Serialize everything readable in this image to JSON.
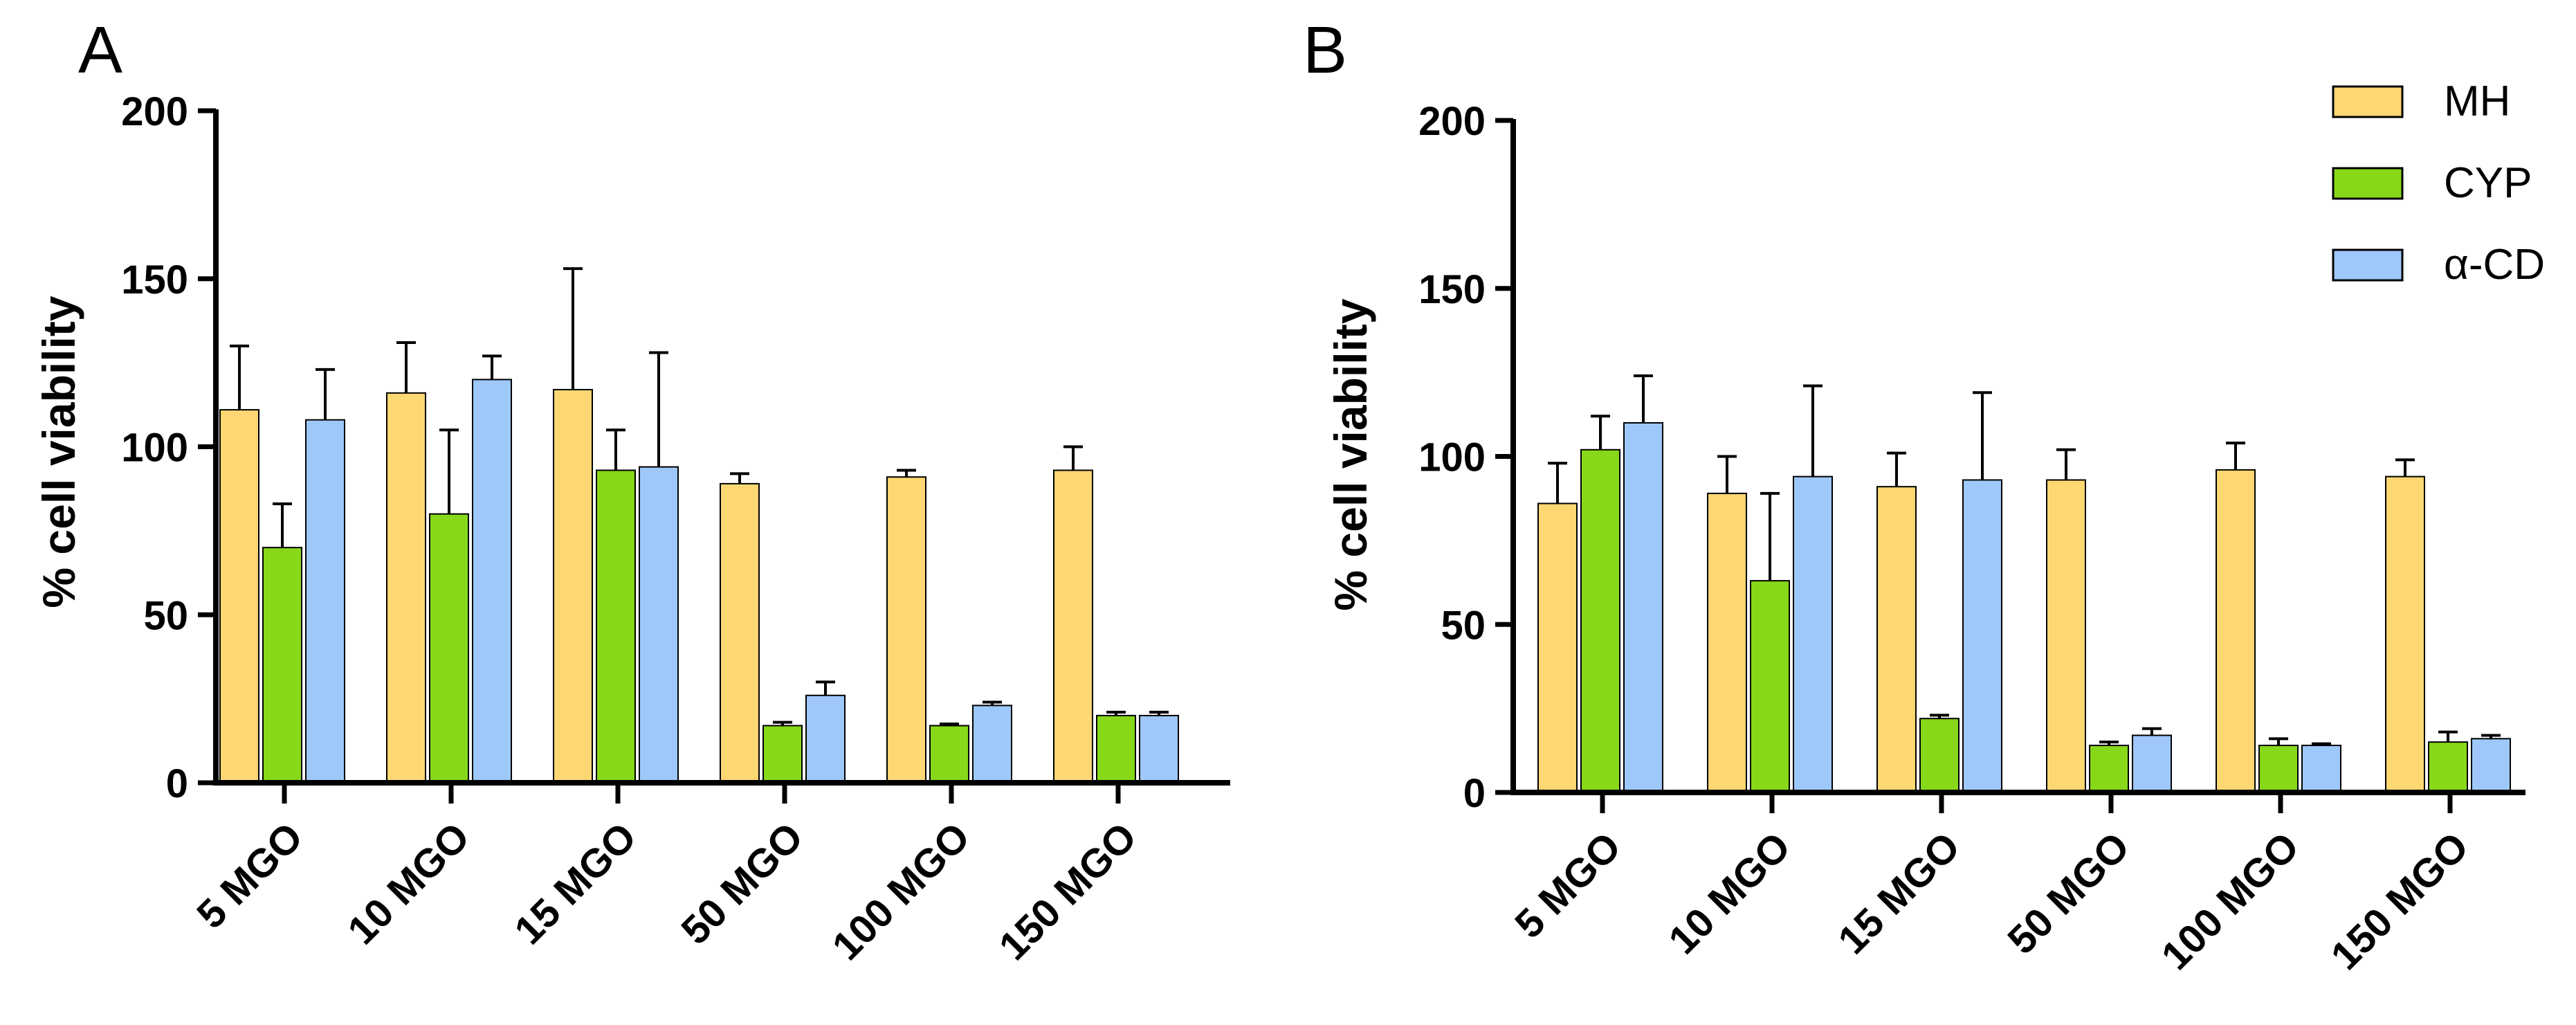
{
  "chart_data": [
    {
      "type": "bar",
      "panel": "A",
      "title": "",
      "xlabel": "",
      "ylabel": "% cell viability",
      "ylim": [
        0,
        200
      ],
      "yticks": [
        "0",
        "50",
        "100",
        "150",
        "200"
      ],
      "categories": [
        "5 MGO",
        "10 MGO",
        "15 MGO",
        "50 MGO",
        "100 MGO",
        "150 MGO"
      ],
      "series": [
        {
          "name": "MH",
          "color": "#FCD772",
          "values": [
            111,
            116,
            117,
            89,
            91,
            93
          ],
          "errors": [
            19,
            15,
            36,
            3,
            2,
            7
          ]
        },
        {
          "name": "CYP",
          "color": "#88D81A",
          "values": [
            70,
            80,
            93,
            17,
            17,
            20
          ],
          "errors": [
            13,
            25,
            12,
            1,
            0.5,
            1
          ]
        },
        {
          "name": "α-CD",
          "color": "#9FC8FA",
          "values": [
            108,
            120,
            94,
            26,
            23,
            20
          ],
          "errors": [
            15,
            7,
            34,
            4,
            1,
            1
          ]
        }
      ],
      "grid": false,
      "legend": "none"
    },
    {
      "type": "bar",
      "panel": "B",
      "title": "",
      "xlabel": "",
      "ylabel": "% cell viability",
      "ylim": [
        0,
        200
      ],
      "yticks": [
        "0",
        "50",
        "100",
        "150",
        "200"
      ],
      "categories": [
        "5 MGO",
        "10 MGO",
        "15 MGO",
        "50 MGO",
        "100 MGO",
        "150 MGO"
      ],
      "series": [
        {
          "name": "MH",
          "color": "#FCD772",
          "values": [
            86,
            89,
            91,
            93,
            96,
            94
          ],
          "errors": [
            12,
            11,
            10,
            9,
            8,
            5
          ]
        },
        {
          "name": "CYP",
          "color": "#88D81A",
          "values": [
            102,
            63,
            22,
            14,
            14,
            15
          ],
          "errors": [
            10,
            26,
            1,
            1,
            2,
            3
          ]
        },
        {
          "name": "α-CD",
          "color": "#9FC8FA",
          "values": [
            110,
            94,
            93,
            17,
            14,
            16
          ],
          "errors": [
            14,
            27,
            26,
            2,
            0.5,
            1
          ]
        }
      ],
      "grid": false,
      "legend": "top-right"
    }
  ]
}
